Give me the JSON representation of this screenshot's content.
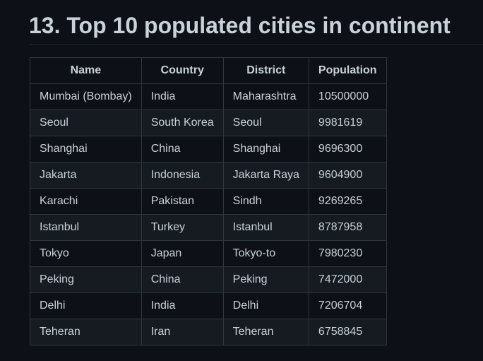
{
  "heading": "13. Top 10 populated cities in continent",
  "table": {
    "columns": [
      "Name",
      "Country",
      "District",
      "Population"
    ],
    "rows": [
      [
        "Mumbai (Bombay)",
        "India",
        "Maharashtra",
        "10500000"
      ],
      [
        "Seoul",
        "South Korea",
        "Seoul",
        "9981619"
      ],
      [
        "Shanghai",
        "China",
        "Shanghai",
        "9696300"
      ],
      [
        "Jakarta",
        "Indonesia",
        "Jakarta Raya",
        "9604900"
      ],
      [
        "Karachi",
        "Pakistan",
        "Sindh",
        "9269265"
      ],
      [
        "Istanbul",
        "Turkey",
        "Istanbul",
        "8787958"
      ],
      [
        "Tokyo",
        "Japan",
        "Tokyo-to",
        "7980230"
      ],
      [
        "Peking",
        "China",
        "Peking",
        "7472000"
      ],
      [
        "Delhi",
        "India",
        "Delhi",
        "7206704"
      ],
      [
        "Teheran",
        "Iran",
        "Teheran",
        "6758845"
      ]
    ]
  },
  "colors": {
    "background": "#0d1117",
    "text": "#c9d1d9",
    "border": "#30363d",
    "row_alt": "#161b22"
  }
}
